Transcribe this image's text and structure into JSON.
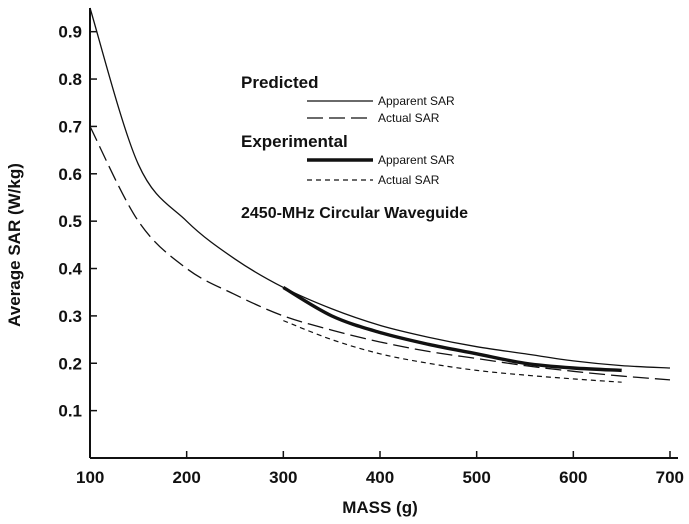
{
  "chart_data": {
    "type": "line",
    "xlabel": "MASS (g)",
    "ylabel": "Average SAR (W/kg)",
    "xlim": [
      100,
      700
    ],
    "ylim": [
      0,
      0.95
    ],
    "x_ticks": [
      "100",
      "200",
      "300",
      "400",
      "500",
      "600",
      "700"
    ],
    "y_ticks": [
      "0.1",
      "0.2",
      "0.3",
      "0.4",
      "0.5",
      "0.6",
      "0.7",
      "0.8",
      "0.9"
    ],
    "grid": false,
    "annotation": "2450-MHz Circular Waveguide",
    "legend": {
      "placement": "top-center",
      "groups": [
        {
          "heading": "Predicted",
          "items": [
            "Apparent SAR",
            "Actual SAR"
          ]
        },
        {
          "heading": "Experimental",
          "items": [
            "Apparent SAR",
            "Actual SAR"
          ]
        }
      ]
    },
    "series": [
      {
        "name": "Predicted Apparent SAR",
        "style": "thin-solid",
        "x": [
          100,
          150,
          200,
          250,
          300,
          350,
          400,
          450,
          500,
          550,
          600,
          650,
          700
        ],
        "y": [
          0.95,
          0.62,
          0.5,
          0.42,
          0.36,
          0.315,
          0.28,
          0.255,
          0.235,
          0.22,
          0.205,
          0.195,
          0.19
        ]
      },
      {
        "name": "Predicted Actual SAR",
        "style": "long-dash",
        "x": [
          100,
          150,
          200,
          250,
          300,
          350,
          400,
          450,
          500,
          550,
          600,
          650,
          700
        ],
        "y": [
          0.7,
          0.5,
          0.4,
          0.345,
          0.3,
          0.27,
          0.245,
          0.225,
          0.21,
          0.195,
          0.183,
          0.173,
          0.165
        ]
      },
      {
        "name": "Experimental Apparent SAR",
        "style": "thick-solid",
        "x": [
          300,
          350,
          400,
          450,
          500,
          550,
          600,
          650
        ],
        "y": [
          0.36,
          0.3,
          0.265,
          0.24,
          0.22,
          0.2,
          0.19,
          0.185
        ]
      },
      {
        "name": "Experimental Actual SAR",
        "style": "short-dash",
        "x": [
          300,
          350,
          400,
          450,
          500,
          550,
          600,
          650
        ],
        "y": [
          0.29,
          0.25,
          0.22,
          0.2,
          0.185,
          0.175,
          0.167,
          0.16
        ]
      }
    ]
  }
}
